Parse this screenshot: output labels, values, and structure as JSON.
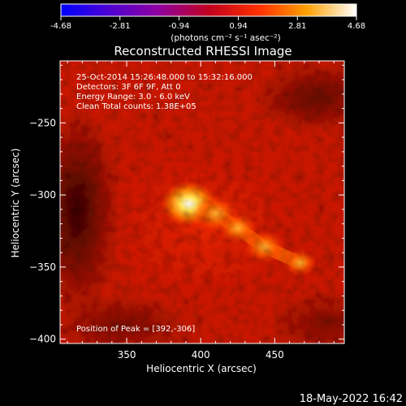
{
  "colorbar": {
    "tick_labels": [
      "-4.68",
      "-2.81",
      "-0.94",
      "0.94",
      "2.81",
      "4.68"
    ],
    "tick_values": [
      -4.68,
      -2.81,
      -0.94,
      0.94,
      2.81,
      4.68
    ],
    "range": [
      -4.68,
      4.68
    ],
    "unit_label": "(photons cm⁻² s⁻¹ asec⁻²)",
    "colormap": [
      "#0000ff",
      "#6000c0",
      "#900070",
      "#c00010",
      "#ff4000",
      "#ffb000",
      "#ffffff"
    ]
  },
  "plot": {
    "title": "Reconstructed RHESSI Image",
    "annotations": [
      "25-Oct-2014 15:26:48.000 to 15:32:16.000",
      "Detectors: 3F 6F 9F, Att 0",
      "Energy Range: 3.0 - 6.0 keV",
      "Clean    Total counts: 1.38E+05"
    ],
    "peak_label": "Position of Peak = [392,-306]"
  },
  "footer": {
    "timestamp": "18-May-2022 16:42"
  },
  "chart_data": {
    "type": "heatmap",
    "title": "Reconstructed RHESSI Image",
    "xlabel": "Heliocentric X (arcsec)",
    "ylabel": "Heliocentric Y (arcsec)",
    "xlim": [
      305,
      497
    ],
    "ylim": [
      -403,
      -207
    ],
    "x_ticks": [
      350,
      400,
      450
    ],
    "y_ticks": [
      -250,
      -300,
      -350,
      -400
    ],
    "colorbar_range": [
      -4.68,
      4.68
    ],
    "peak": {
      "x": 392,
      "y": -306
    },
    "sources": [
      {
        "x": 392,
        "y": -306,
        "intensity": 4.68
      },
      {
        "x": 410,
        "y": -313,
        "intensity": 3.2
      },
      {
        "x": 425,
        "y": -323,
        "intensity": 2.4
      },
      {
        "x": 443,
        "y": -336,
        "intensity": 2.6
      },
      {
        "x": 467,
        "y": -347,
        "intensity": 1.8
      }
    ]
  }
}
